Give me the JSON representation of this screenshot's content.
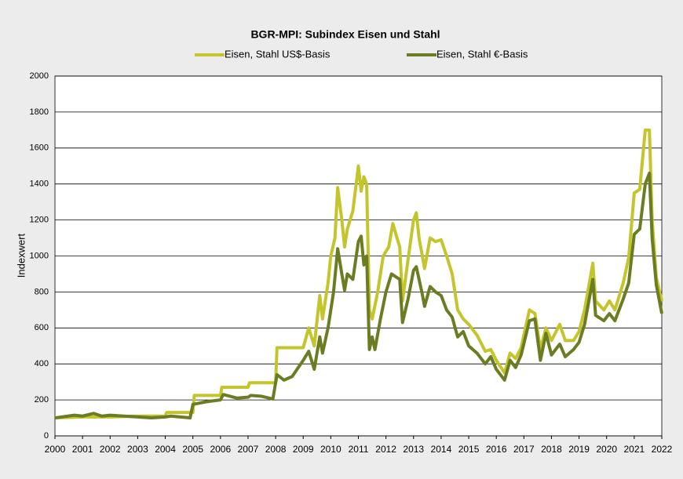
{
  "chart_data": {
    "type": "line",
    "title": "BGR-MPI:  Subindex Eisen und Stahl",
    "ylabel": "Indexwert",
    "xlim": [
      2000,
      2022
    ],
    "xticks": [
      2000,
      2001,
      2002,
      2003,
      2004,
      2005,
      2006,
      2007,
      2008,
      2009,
      2010,
      2011,
      2012,
      2013,
      2014,
      2015,
      2016,
      2017,
      2018,
      2019,
      2020,
      2021,
      2022
    ],
    "ylim": [
      0,
      2000
    ],
    "yticks": [
      0,
      200,
      400,
      600,
      800,
      1000,
      1200,
      1400,
      1600,
      1800,
      2000
    ],
    "grid": true,
    "series": [
      {
        "name": "Eisen, Stahl US$-Basis",
        "color": "#c4c42c",
        "x": [
          2000,
          2001,
          2002,
          2003,
          2004,
          2004.05,
          2005,
          2005.05,
          2006,
          2006.05,
          2007,
          2007.05,
          2008,
          2008.05,
          2009,
          2009.2,
          2009.4,
          2009.6,
          2009.7,
          2009.9,
          2010,
          2010.15,
          2010.25,
          2010.4,
          2010.5,
          2010.6,
          2010.8,
          2011,
          2011.1,
          2011.2,
          2011.3,
          2011.4,
          2011.5,
          2011.7,
          2011.9,
          2012.1,
          2012.25,
          2012.4,
          2012.5,
          2012.6,
          2012.8,
          2013,
          2013.1,
          2013.2,
          2013.4,
          2013.6,
          2013.8,
          2014,
          2014.2,
          2014.4,
          2014.6,
          2014.8,
          2015,
          2015.3,
          2015.6,
          2015.8,
          2016,
          2016.3,
          2016.5,
          2016.7,
          2016.9,
          2017.2,
          2017.4,
          2017.6,
          2017.8,
          2018,
          2018.3,
          2018.5,
          2018.8,
          2019,
          2019.2,
          2019.5,
          2019.6,
          2019.9,
          2020.1,
          2020.3,
          2020.6,
          2020.8,
          2021,
          2021.2,
          2021.4,
          2021.55,
          2021.65,
          2021.8,
          2022
        ],
        "values": [
          100,
          105,
          105,
          110,
          110,
          130,
          130,
          225,
          225,
          270,
          270,
          295,
          295,
          490,
          490,
          600,
          500,
          780,
          650,
          850,
          1000,
          1100,
          1380,
          1200,
          1050,
          1150,
          1250,
          1500,
          1360,
          1440,
          1400,
          700,
          650,
          800,
          1000,
          1050,
          1180,
          1100,
          1050,
          750,
          980,
          1200,
          1240,
          1100,
          930,
          1100,
          1080,
          1090,
          1000,
          900,
          700,
          650,
          620,
          560,
          470,
          480,
          420,
          350,
          460,
          430,
          490,
          700,
          680,
          480,
          600,
          530,
          620,
          530,
          530,
          580,
          700,
          960,
          750,
          700,
          750,
          700,
          850,
          990,
          1350,
          1370,
          1700,
          1700,
          1200,
          880,
          750
        ]
      },
      {
        "name": "Eisen, Stahl €-Basis",
        "color": "#6b7d22",
        "x": [
          2000,
          2000.7,
          2001,
          2001.4,
          2001.7,
          2002,
          2002.5,
          2003,
          2003.5,
          2004,
          2004.2,
          2004.9,
          2005,
          2005.5,
          2006,
          2006.1,
          2006.6,
          2007,
          2007.1,
          2007.5,
          2007.9,
          2008.05,
          2008.3,
          2008.6,
          2009,
          2009.2,
          2009.4,
          2009.6,
          2009.7,
          2009.9,
          2010.1,
          2010.25,
          2010.4,
          2010.5,
          2010.6,
          2010.8,
          2011,
          2011.1,
          2011.2,
          2011.3,
          2011.4,
          2011.5,
          2011.6,
          2011.8,
          2012,
          2012.2,
          2012.4,
          2012.5,
          2012.6,
          2012.8,
          2013,
          2013.1,
          2013.3,
          2013.4,
          2013.6,
          2013.8,
          2014,
          2014.2,
          2014.4,
          2014.6,
          2014.8,
          2015,
          2015.3,
          2015.6,
          2015.8,
          2016,
          2016.3,
          2016.5,
          2016.7,
          2016.9,
          2017.2,
          2017.4,
          2017.6,
          2017.8,
          2018,
          2018.3,
          2018.5,
          2018.8,
          2019,
          2019.2,
          2019.5,
          2019.6,
          2019.9,
          2020.1,
          2020.3,
          2020.6,
          2020.8,
          2021,
          2021.2,
          2021.4,
          2021.55,
          2021.65,
          2021.8,
          2022
        ],
        "values": [
          100,
          115,
          110,
          125,
          110,
          115,
          110,
          105,
          100,
          105,
          110,
          100,
          175,
          190,
          200,
          230,
          210,
          215,
          225,
          220,
          205,
          340,
          310,
          330,
          420,
          470,
          370,
          550,
          460,
          600,
          800,
          1040,
          900,
          810,
          900,
          870,
          1080,
          1110,
          950,
          1000,
          480,
          550,
          480,
          650,
          800,
          900,
          880,
          870,
          630,
          760,
          920,
          940,
          800,
          720,
          830,
          800,
          780,
          700,
          660,
          550,
          580,
          500,
          460,
          400,
          440,
          370,
          310,
          420,
          380,
          450,
          640,
          650,
          420,
          570,
          450,
          510,
          440,
          480,
          520,
          620,
          870,
          670,
          640,
          680,
          640,
          760,
          850,
          1120,
          1150,
          1400,
          1460,
          1100,
          840,
          680
        ]
      }
    ]
  }
}
